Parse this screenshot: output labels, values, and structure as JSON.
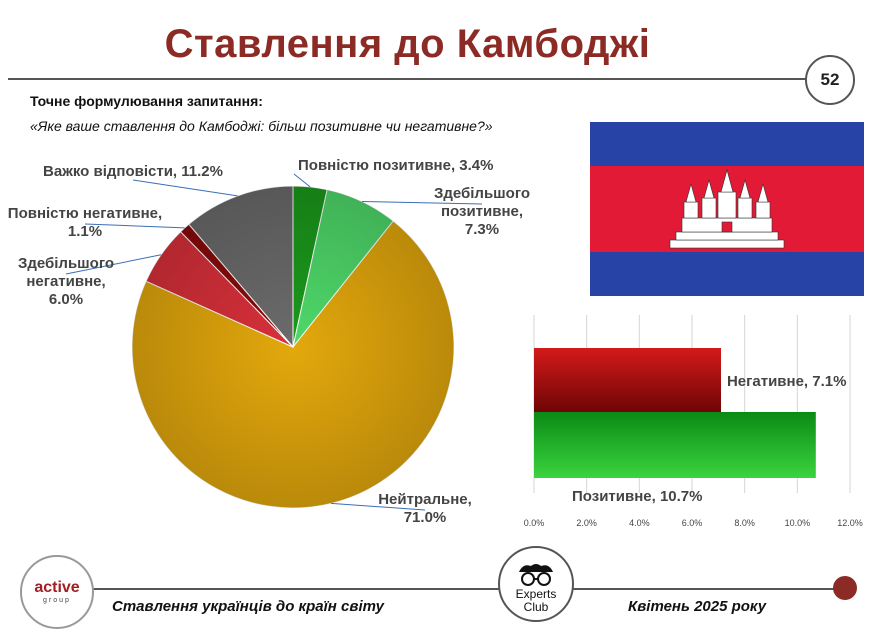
{
  "title": "Ставлення до Камбоджі",
  "page_number": "52",
  "question_label": "Точне формулювання запитання:",
  "question_text": "«Яке ваше ставлення до Камбоджі: більш позитивне чи негативне?»",
  "footer": {
    "left": "Ставлення українців до країн світу",
    "right": "Квітень 2025 року",
    "logo_active": "active",
    "logo_active_sub": "group",
    "logo_experts": "Experts",
    "logo_experts_2": "Club"
  },
  "colors": {
    "title": "#8c2b25",
    "flag_blue": "#2743a6",
    "flag_red": "#e21a35"
  },
  "chart_data": [
    {
      "type": "pie",
      "slices": [
        {
          "label": "Повністю позитивне, 3.4%",
          "value": 3.4,
          "color": "#1b9a1b"
        },
        {
          "label": "Здебільшого позитивне, 7.3%",
          "value": 7.3,
          "color": "#4fd96a"
        },
        {
          "label": "Нейтральне, 71.0%",
          "value": 71.0,
          "color": "#e3a80c"
        },
        {
          "label": "Здебільшого негативне, 6.0%",
          "value": 6.0,
          "color": "#d9303a"
        },
        {
          "label": "Повністю негативне, 1.1%",
          "value": 1.1,
          "color": "#8b0a0a"
        },
        {
          "label": "Важко відповісти, 11.2%",
          "value": 11.2,
          "color": "#6b6b6b"
        }
      ]
    },
    {
      "type": "bar",
      "orientation": "horizontal",
      "categories": [
        "Негативне, 7.1%",
        "Позитивне, 10.7%"
      ],
      "values": [
        7.1,
        10.7
      ],
      "colors": [
        "#b30d0d",
        "#22b22a"
      ],
      "xlim": [
        0,
        12
      ],
      "xticks": [
        "0.0%",
        "2.0%",
        "4.0%",
        "6.0%",
        "8.0%",
        "10.0%",
        "12.0%"
      ],
      "grid": true
    }
  ]
}
